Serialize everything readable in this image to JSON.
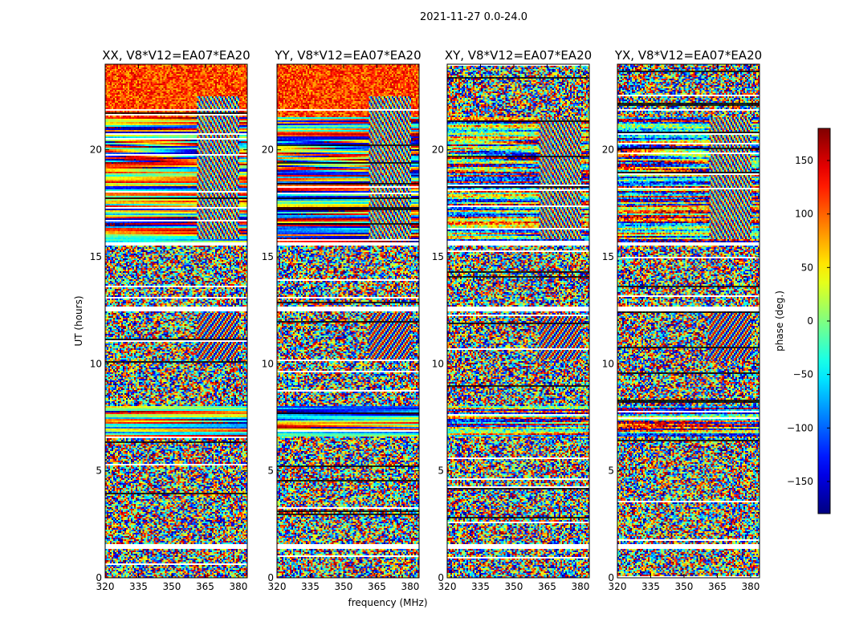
{
  "figure": {
    "suptitle": "2021-11-27 0.0-24.0"
  },
  "chart_data": {
    "type": "heatmap",
    "title": "2021-11-27 0.0-24.0",
    "xlabel": "frequency (MHz)",
    "ylabel": "UT (hours)",
    "xlim": [
      320,
      384
    ],
    "ylim": [
      0,
      24
    ],
    "xticks": [
      320,
      335,
      350,
      365,
      380
    ],
    "yticks": [
      0,
      5,
      10,
      15,
      20
    ],
    "panels": [
      {
        "title": "XX, V8*V12=EA07*EA20",
        "polarization": "XX"
      },
      {
        "title": "YY, V8*V12=EA07*EA20",
        "polarization": "YY"
      },
      {
        "title": "XY, V8*V12=EA07*EA20",
        "polarization": "XY"
      },
      {
        "title": "YX, V8*V12=EA07*EA20",
        "polarization": "YX"
      }
    ],
    "colorbar": {
      "label": "phase (deg.)",
      "range": [
        -180,
        180
      ],
      "ticks": [
        -150,
        -100,
        -50,
        0,
        50,
        100,
        150
      ],
      "tick_labels": [
        "−150",
        "−100",
        "−50",
        "0",
        "50",
        "100",
        "150"
      ],
      "colormap": "jet"
    },
    "flagged_ut_ranges": [
      [
        1.35,
        1.55
      ],
      [
        12.45,
        12.65
      ],
      [
        15.55,
        15.65
      ]
    ]
  }
}
